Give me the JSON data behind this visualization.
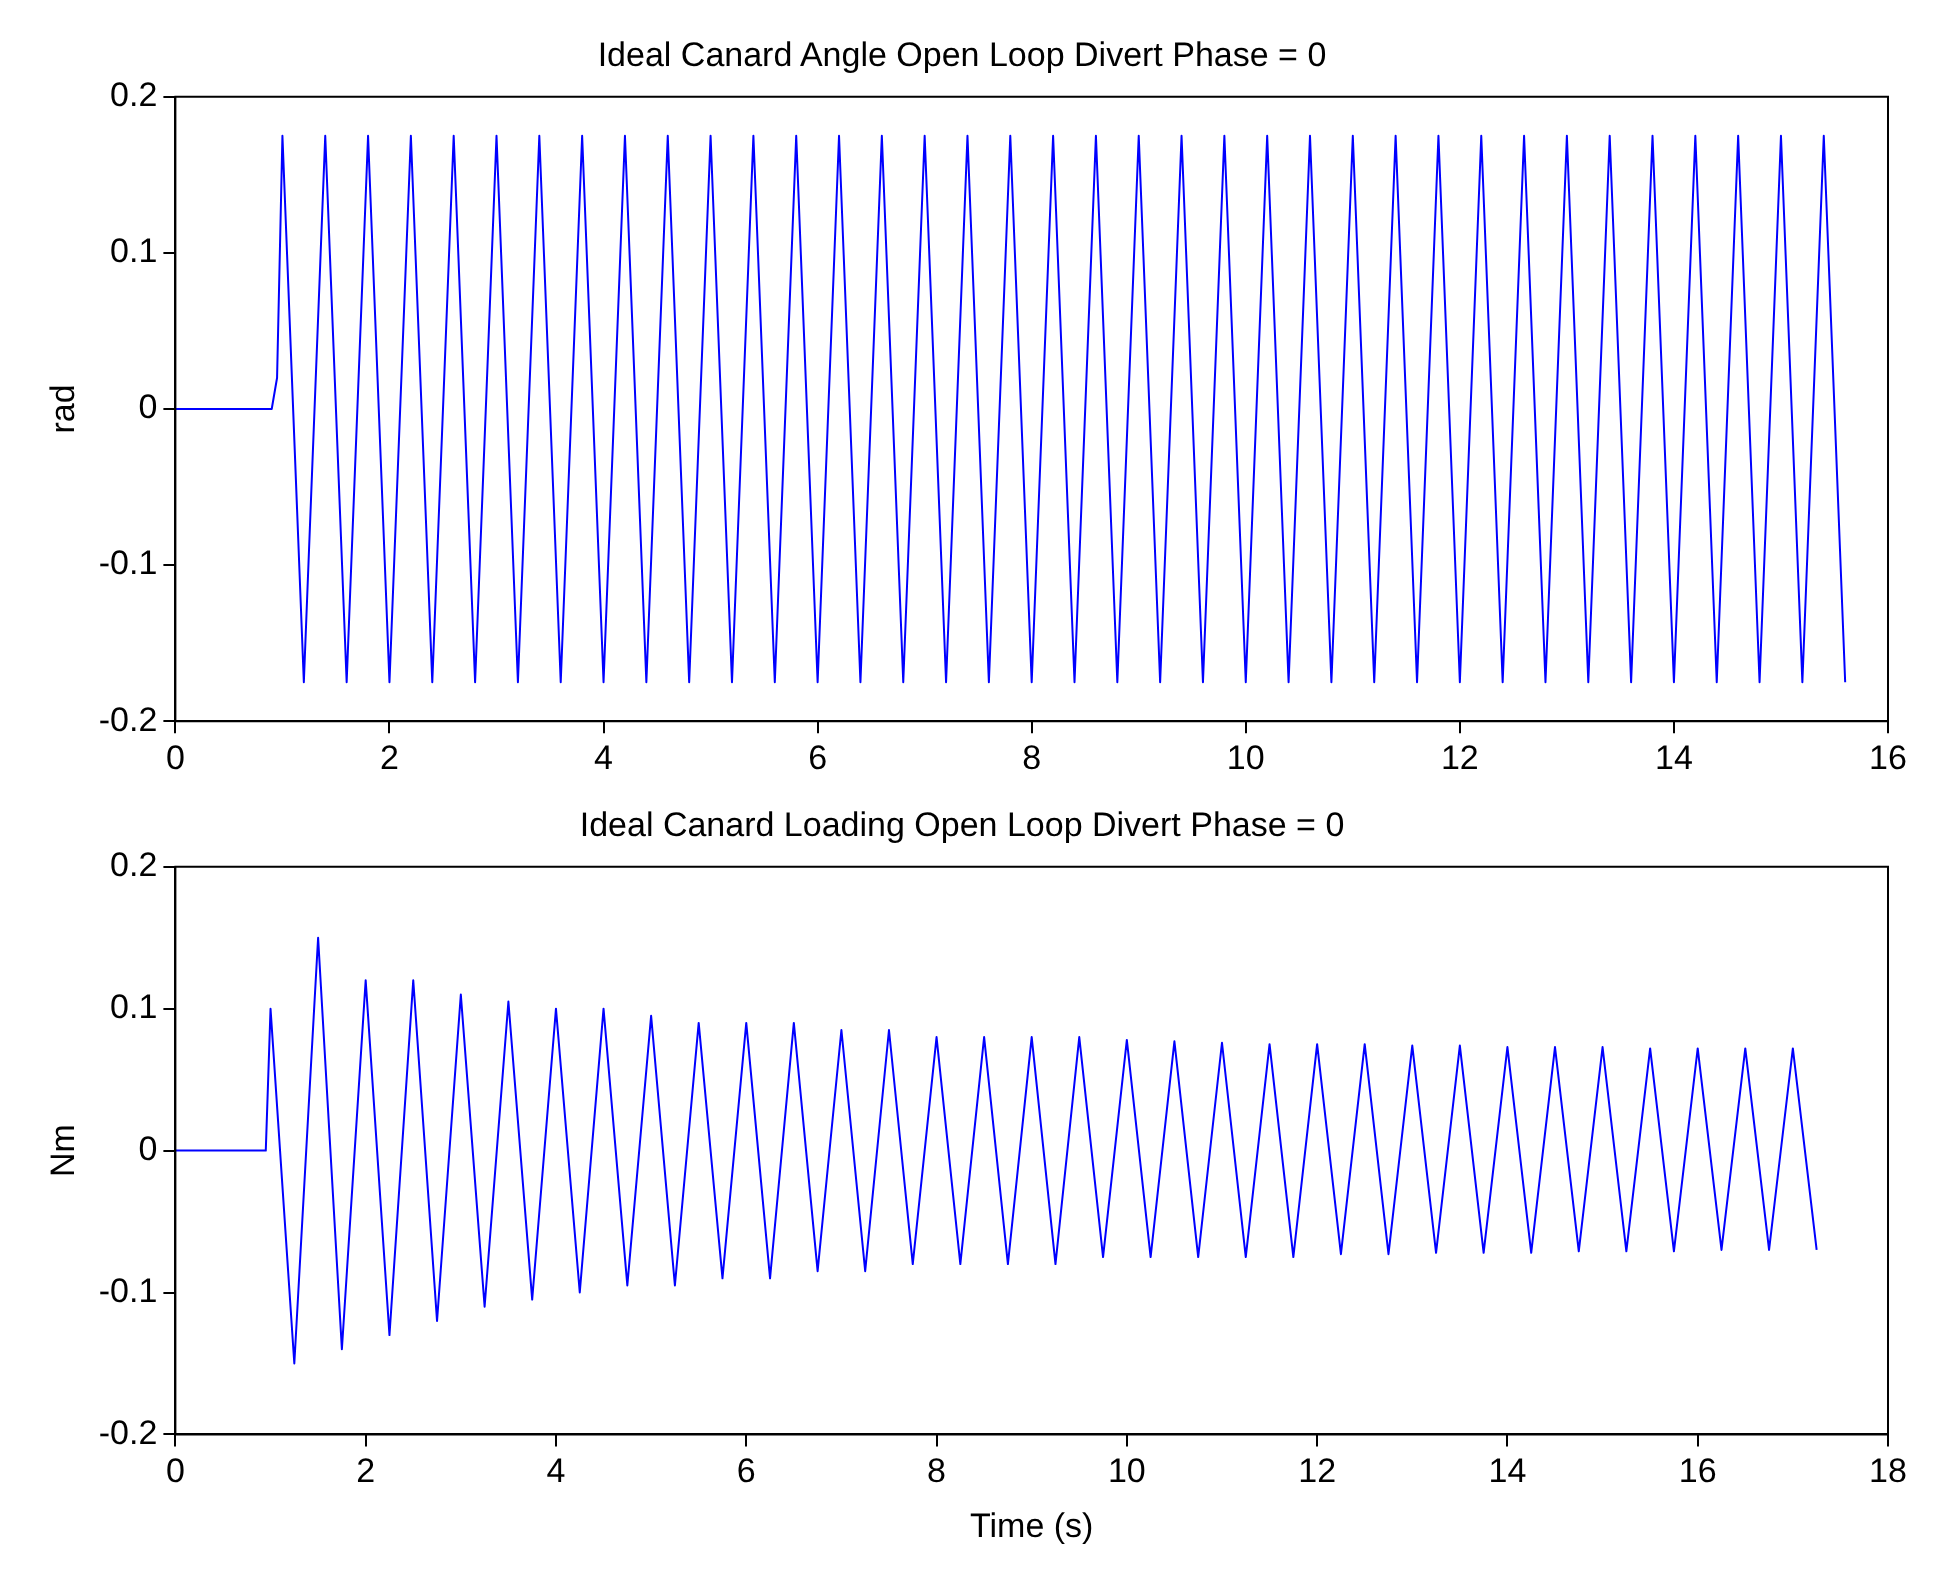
{
  "chart_data": [
    {
      "type": "line",
      "title": "Ideal Canard Angle Open Loop Divert Phase = 0",
      "ylabel": "rad",
      "xlim": [
        0,
        16
      ],
      "xticks": [
        0,
        2,
        4,
        6,
        8,
        10,
        12,
        14,
        16
      ],
      "ylim": [
        -0.2,
        0.2
      ],
      "yticks": [
        -0.2,
        -0.1,
        0,
        0.1,
        0.2
      ],
      "series": [
        {
          "color": "#0000ff",
          "x": [
            0,
            0.9,
            0.95,
            1.0,
            1.2,
            1.4,
            1.6,
            1.8,
            2.0,
            2.2,
            2.4,
            2.6,
            2.8,
            3.0,
            3.2,
            3.4,
            3.6,
            3.8,
            4.0,
            4.2,
            4.4,
            4.6,
            4.8,
            5.0,
            5.2,
            5.4,
            5.6,
            5.8,
            6.0,
            6.2,
            6.4,
            6.6,
            6.8,
            7.0,
            7.2,
            7.4,
            7.6,
            7.8,
            8.0,
            8.2,
            8.4,
            8.6,
            8.8,
            9.0,
            9.2,
            9.4,
            9.6,
            9.8,
            10.0,
            10.2,
            10.4,
            10.6,
            10.8,
            11.0,
            11.2,
            11.4,
            11.6,
            11.8,
            12.0,
            12.2,
            12.4,
            12.6,
            12.8,
            13.0,
            13.2,
            13.4,
            13.6,
            13.8,
            14.0,
            14.2,
            14.4,
            14.6,
            14.8,
            15.0,
            15.2,
            15.4,
            15.6
          ],
          "values": [
            0,
            0,
            0.02,
            0.175,
            -0.175,
            0.175,
            -0.175,
            0.175,
            -0.175,
            0.175,
            -0.175,
            0.175,
            -0.175,
            0.175,
            -0.175,
            0.175,
            -0.175,
            0.175,
            -0.175,
            0.175,
            -0.175,
            0.175,
            -0.175,
            0.175,
            -0.175,
            0.175,
            -0.175,
            0.175,
            -0.175,
            0.175,
            -0.175,
            0.175,
            -0.175,
            0.175,
            -0.175,
            0.175,
            -0.175,
            0.175,
            -0.175,
            0.175,
            -0.175,
            0.175,
            -0.175,
            0.175,
            -0.175,
            0.175,
            -0.175,
            0.175,
            -0.175,
            0.175,
            -0.175,
            0.175,
            -0.175,
            0.175,
            -0.175,
            0.175,
            -0.175,
            0.175,
            -0.175,
            0.175,
            -0.175,
            0.175,
            -0.175,
            0.175,
            -0.175,
            0.175,
            -0.175,
            0.175,
            -0.175,
            0.175,
            -0.175,
            0.175,
            -0.175,
            0.175,
            -0.175,
            0.175,
            -0.175
          ]
        }
      ]
    },
    {
      "type": "line",
      "title": "Ideal Canard Loading Open Loop Divert Phase = 0",
      "xlabel": "Time (s)",
      "ylabel": "Nm",
      "xlim": [
        0,
        18
      ],
      "xticks": [
        0,
        2,
        4,
        6,
        8,
        10,
        12,
        14,
        16,
        18
      ],
      "ylim": [
        -0.2,
        0.2
      ],
      "yticks": [
        -0.2,
        -0.1,
        0,
        0.1,
        0.2
      ],
      "series": [
        {
          "color": "#0000ff",
          "x": [
            0,
            0.95,
            1.0,
            1.25,
            1.5,
            1.75,
            2.0,
            2.25,
            2.5,
            2.75,
            3.0,
            3.25,
            3.5,
            3.75,
            4.0,
            4.25,
            4.5,
            4.75,
            5.0,
            5.25,
            5.5,
            5.75,
            6.0,
            6.25,
            6.5,
            6.75,
            7.0,
            7.25,
            7.5,
            7.75,
            8.0,
            8.25,
            8.5,
            8.75,
            9.0,
            9.25,
            9.5,
            9.75,
            10.0,
            10.25,
            10.5,
            10.75,
            11.0,
            11.25,
            11.5,
            11.75,
            12.0,
            12.25,
            12.5,
            12.75,
            13.0,
            13.25,
            13.5,
            13.75,
            14.0,
            14.25,
            14.5,
            14.75,
            15.0,
            15.25,
            15.5,
            15.75,
            16.0,
            16.25,
            16.5,
            16.75,
            17.0,
            17.25
          ],
          "values": [
            0,
            0,
            0.1,
            -0.15,
            0.15,
            -0.14,
            0.12,
            -0.13,
            0.12,
            -0.12,
            0.11,
            -0.11,
            0.105,
            -0.105,
            0.1,
            -0.1,
            0.1,
            -0.095,
            0.095,
            -0.095,
            0.09,
            -0.09,
            0.09,
            -0.09,
            0.09,
            -0.085,
            0.085,
            -0.085,
            0.085,
            -0.08,
            0.08,
            -0.08,
            0.08,
            -0.08,
            0.08,
            -0.08,
            0.08,
            -0.075,
            0.078,
            -0.075,
            0.077,
            -0.075,
            0.076,
            -0.075,
            0.075,
            -0.075,
            0.075,
            -0.073,
            0.075,
            -0.073,
            0.074,
            -0.072,
            0.074,
            -0.072,
            0.073,
            -0.072,
            0.073,
            -0.071,
            0.073,
            -0.071,
            0.072,
            -0.071,
            0.072,
            -0.07,
            0.072,
            -0.07,
            0.072,
            -0.07
          ]
        }
      ]
    }
  ]
}
